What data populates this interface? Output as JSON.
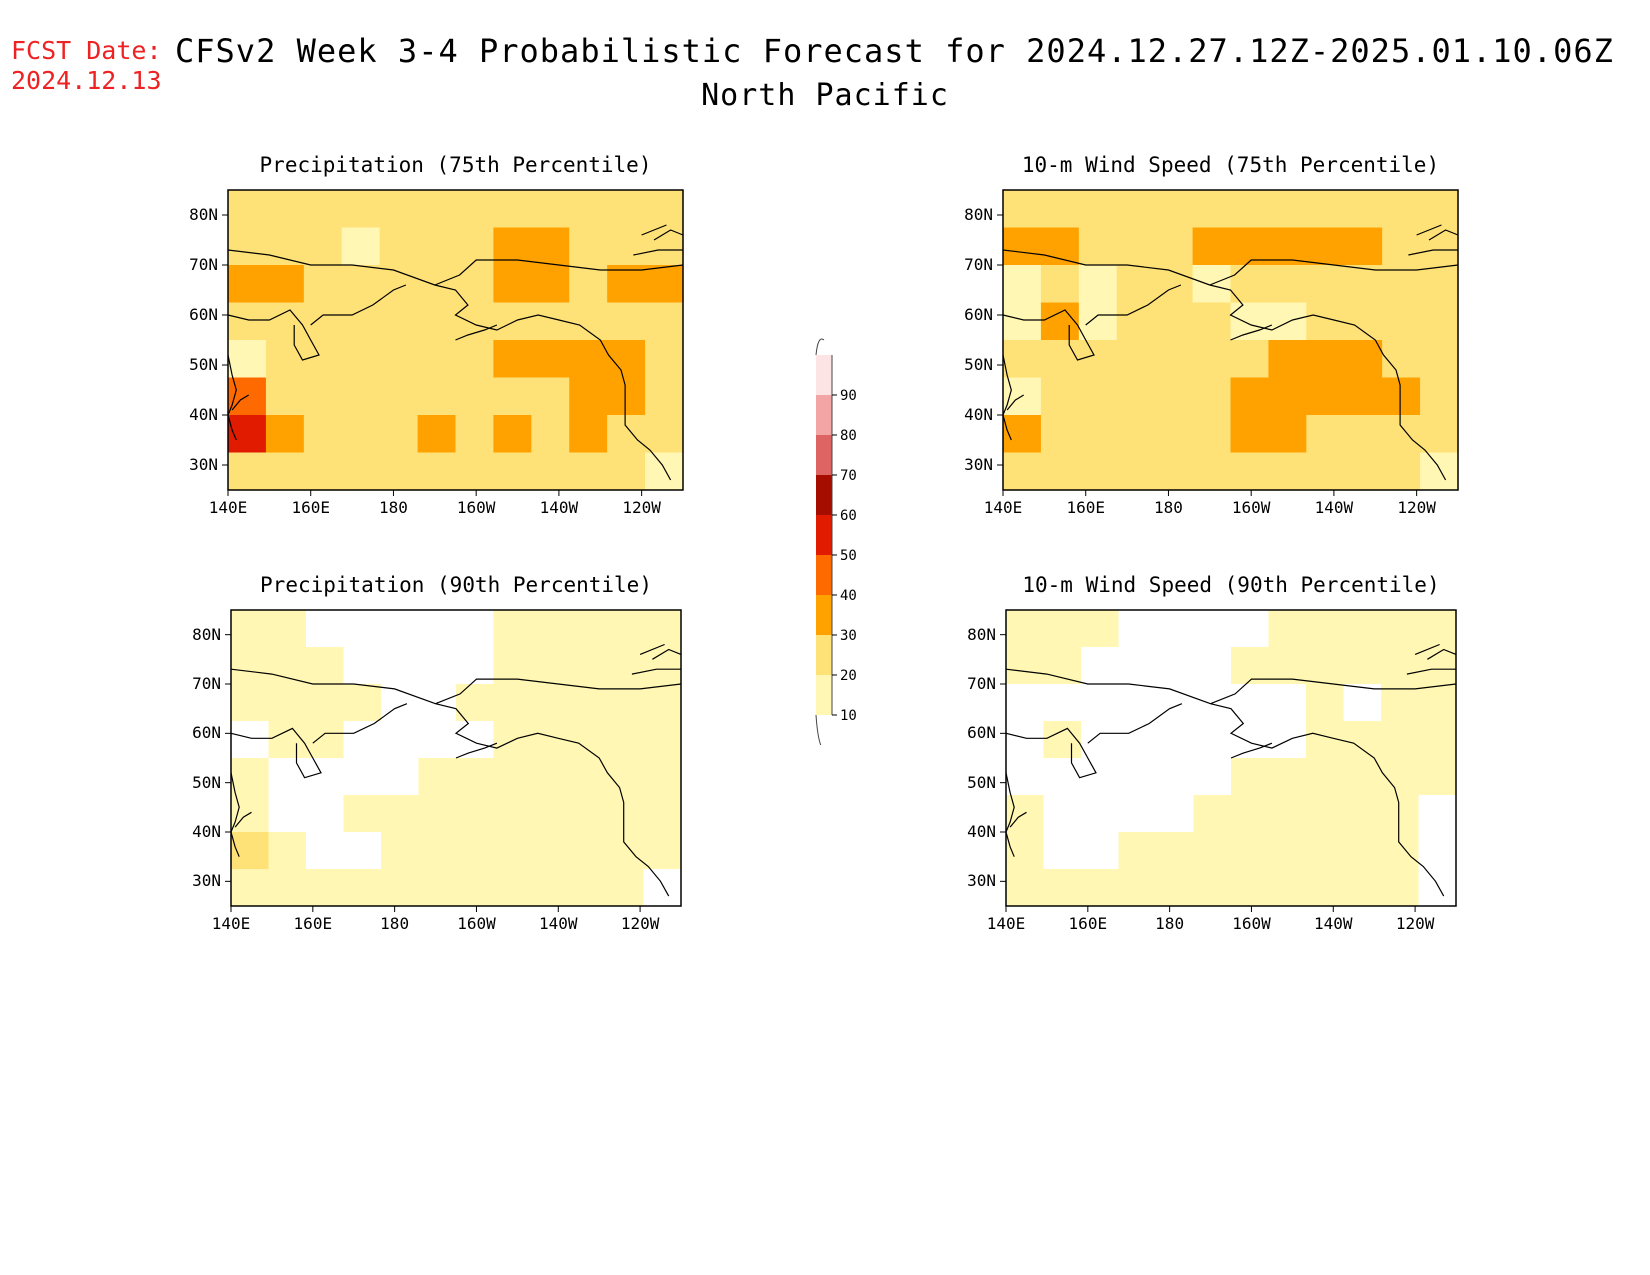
{
  "header": {
    "fcst_label": "FCST Date:",
    "fcst_date": "2024.12.13",
    "title": "CFSv2 Week 3-4 Probabilistic Forecast for 2024.12.27.12Z-2025.01.10.06Z",
    "region": "North Pacific"
  },
  "panels": [
    {
      "title": "Precipitation (75th Percentile)",
      "variable": "precipitation",
      "percentile": 75
    },
    {
      "title": "10-m Wind Speed (75th Percentile)",
      "variable": "wind",
      "percentile": 75
    },
    {
      "title": "Precipitation (90th Percentile)",
      "variable": "precipitation",
      "percentile": 90
    },
    {
      "title": "10-m Wind Speed (90th Percentile)",
      "variable": "wind",
      "percentile": 90
    }
  ],
  "axes": {
    "lat_labels": [
      "80N",
      "70N",
      "60N",
      "50N",
      "40N",
      "30N"
    ],
    "lon_labels": [
      "140E",
      "160E",
      "180",
      "160W",
      "140W",
      "120W"
    ],
    "lat_range": [
      25,
      85
    ],
    "lon_range": [
      140,
      250
    ]
  },
  "colorbar": {
    "levels": [
      10,
      20,
      30,
      40,
      50,
      60,
      70,
      80,
      90
    ],
    "labels": [
      "10",
      "20",
      "30",
      "40",
      "50",
      "60",
      "70",
      "80",
      "90"
    ],
    "colors": [
      "#fff7b3",
      "#ffe277",
      "#ffa200",
      "#ff6a00",
      "#e11b00",
      "#a50d00",
      "#de6363",
      "#f3a4a4",
      "#fde4e4"
    ],
    "units": "%"
  },
  "fields": {
    "p75": [
      [
        2,
        2,
        2,
        2,
        2,
        2,
        2,
        2,
        2,
        2,
        2,
        2
      ],
      [
        2,
        2,
        2,
        1,
        2,
        2,
        2,
        3,
        3,
        2,
        2,
        2
      ],
      [
        3,
        3,
        2,
        2,
        2,
        2,
        2,
        3,
        3,
        2,
        3,
        3
      ],
      [
        2,
        2,
        2,
        2,
        2,
        2,
        2,
        2,
        2,
        2,
        2,
        2
      ],
      [
        1,
        2,
        2,
        2,
        2,
        2,
        2,
        3,
        3,
        3,
        3,
        2
      ],
      [
        4,
        2,
        2,
        2,
        2,
        2,
        2,
        2,
        2,
        3,
        3,
        2
      ],
      [
        5,
        3,
        2,
        2,
        2,
        3,
        2,
        3,
        2,
        3,
        2,
        2
      ],
      [
        2,
        2,
        2,
        2,
        2,
        2,
        2,
        2,
        2,
        2,
        2,
        1
      ]
    ],
    "w75": [
      [
        2,
        2,
        2,
        2,
        2,
        2,
        2,
        2,
        2,
        2,
        2,
        2
      ],
      [
        3,
        3,
        2,
        2,
        2,
        3,
        3,
        3,
        3,
        3,
        2,
        2
      ],
      [
        1,
        2,
        1,
        2,
        2,
        1,
        2,
        2,
        2,
        2,
        2,
        2
      ],
      [
        1,
        3,
        1,
        2,
        2,
        2,
        1,
        1,
        2,
        2,
        2,
        2
      ],
      [
        2,
        2,
        2,
        2,
        2,
        2,
        2,
        3,
        3,
        3,
        2,
        2
      ],
      [
        1,
        2,
        2,
        2,
        2,
        2,
        3,
        3,
        3,
        3,
        3,
        2
      ],
      [
        3,
        2,
        2,
        2,
        2,
        2,
        3,
        3,
        2,
        2,
        2,
        2
      ],
      [
        2,
        2,
        2,
        2,
        2,
        2,
        2,
        2,
        2,
        2,
        2,
        1
      ]
    ],
    "p90": [
      [
        1,
        1,
        0,
        0,
        0,
        0,
        0,
        1,
        1,
        1,
        1,
        1
      ],
      [
        1,
        1,
        1,
        0,
        0,
        0,
        0,
        1,
        1,
        1,
        1,
        1
      ],
      [
        1,
        1,
        1,
        1,
        0,
        0,
        1,
        1,
        1,
        1,
        1,
        1
      ],
      [
        0,
        1,
        1,
        0,
        0,
        0,
        0,
        1,
        1,
        1,
        1,
        1
      ],
      [
        1,
        0,
        0,
        0,
        0,
        1,
        1,
        1,
        1,
        1,
        1,
        1
      ],
      [
        1,
        0,
        0,
        1,
        1,
        1,
        1,
        1,
        1,
        1,
        1,
        1
      ],
      [
        2,
        1,
        0,
        0,
        1,
        1,
        1,
        1,
        1,
        1,
        1,
        1
      ],
      [
        1,
        1,
        1,
        1,
        1,
        1,
        1,
        1,
        1,
        1,
        1,
        0
      ]
    ],
    "w90": [
      [
        1,
        1,
        1,
        0,
        0,
        0,
        0,
        1,
        1,
        1,
        1,
        1
      ],
      [
        1,
        1,
        0,
        0,
        0,
        0,
        1,
        1,
        1,
        1,
        1,
        1
      ],
      [
        0,
        0,
        0,
        0,
        0,
        0,
        0,
        0,
        1,
        0,
        1,
        1
      ],
      [
        0,
        1,
        0,
        0,
        0,
        0,
        0,
        0,
        1,
        1,
        1,
        1
      ],
      [
        0,
        0,
        0,
        0,
        0,
        0,
        1,
        1,
        1,
        1,
        1,
        1
      ],
      [
        1,
        0,
        0,
        0,
        0,
        1,
        1,
        1,
        1,
        1,
        1,
        0
      ],
      [
        1,
        0,
        0,
        1,
        1,
        1,
        1,
        1,
        1,
        1,
        1,
        0
      ],
      [
        1,
        1,
        1,
        1,
        1,
        1,
        1,
        1,
        1,
        1,
        1,
        0
      ]
    ]
  }
}
